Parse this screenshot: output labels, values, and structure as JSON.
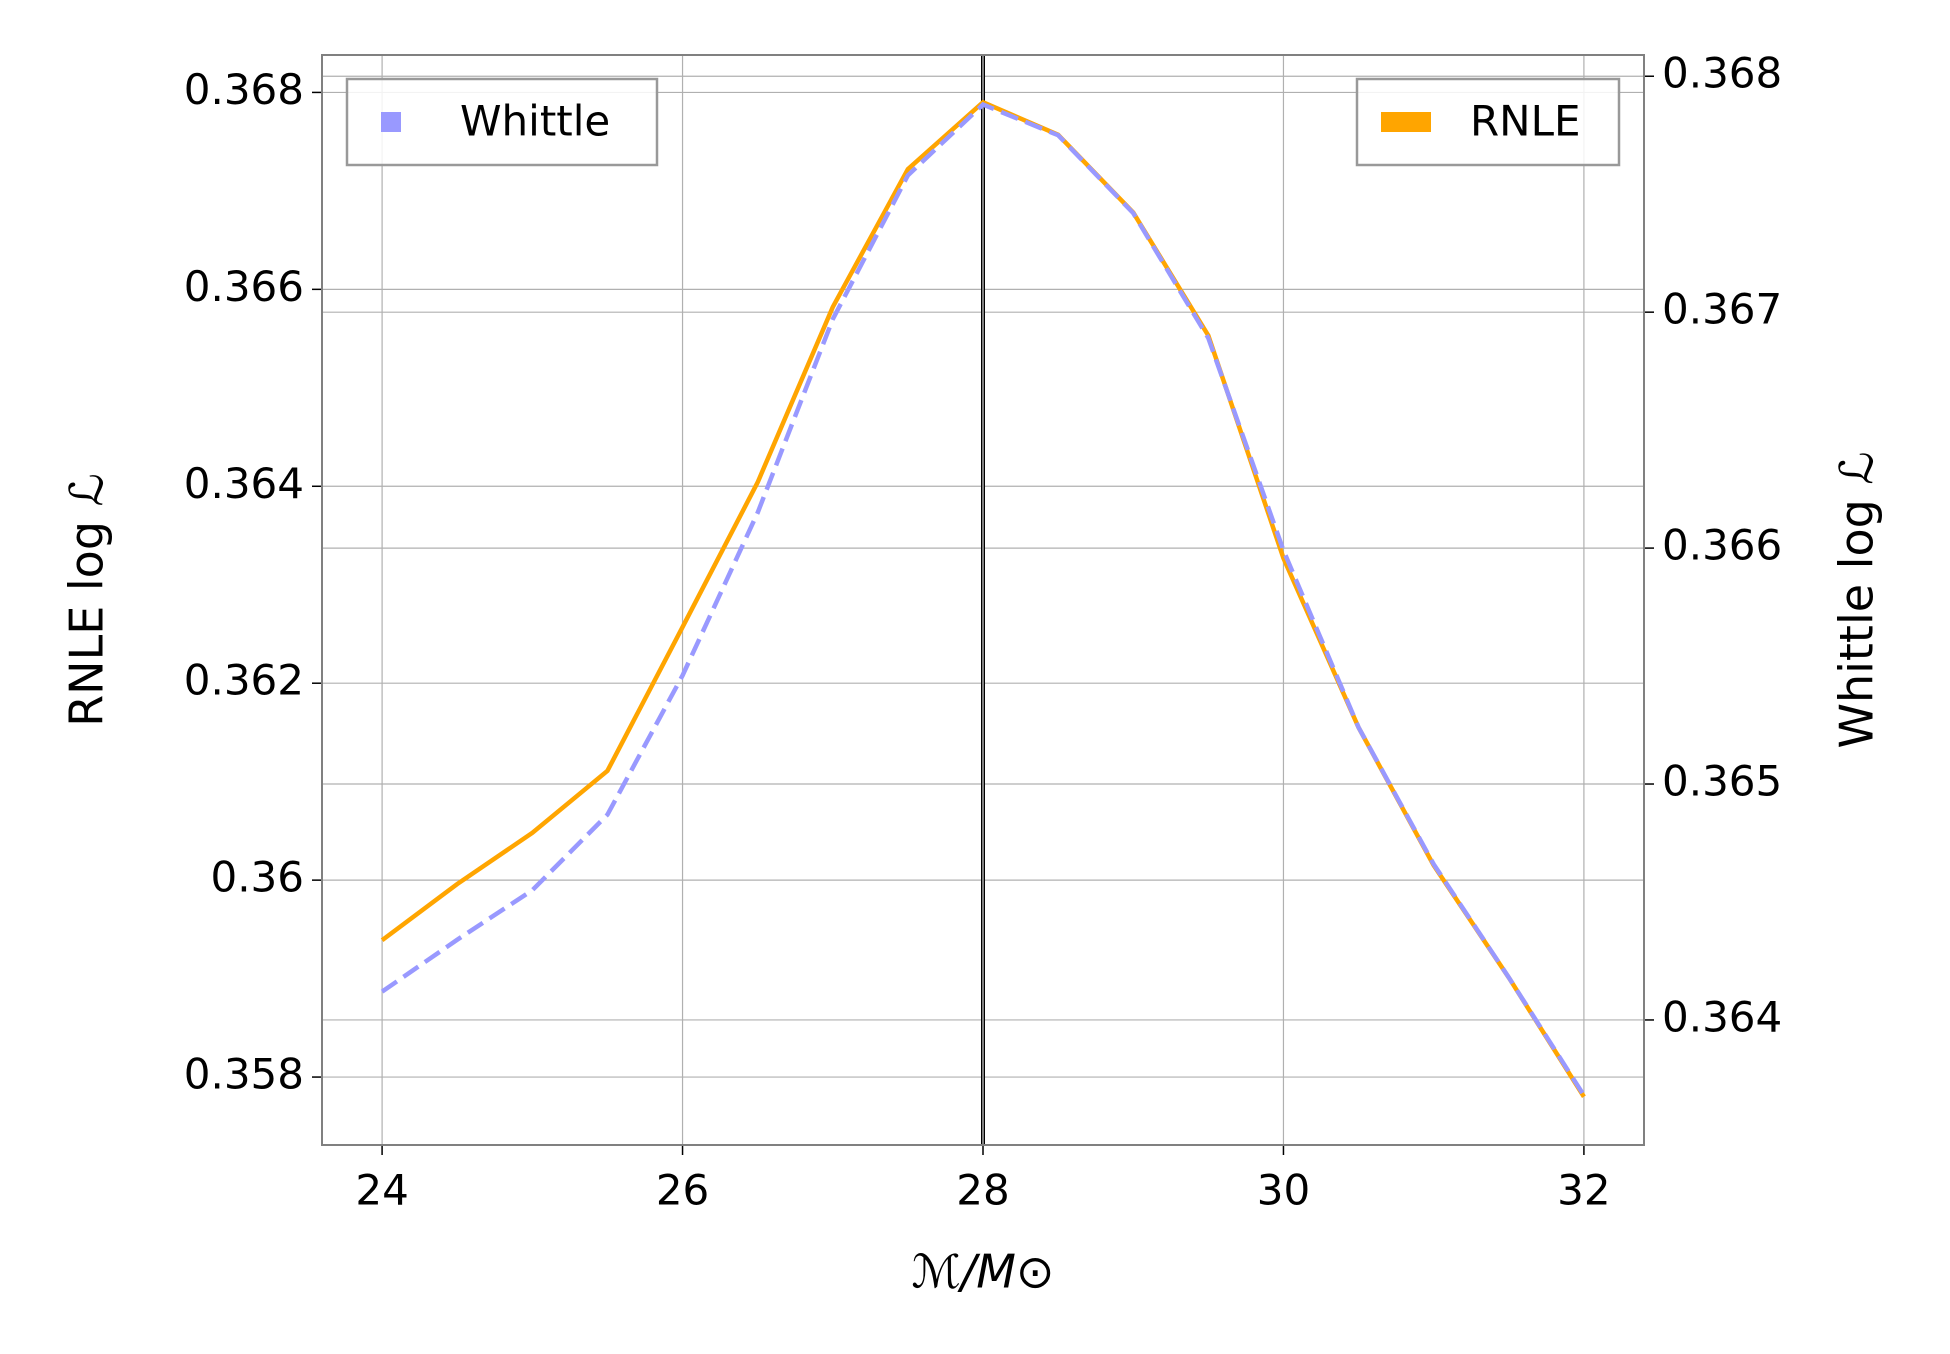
{
  "chart_data": {
    "type": "line",
    "xlabel": "ℳ/M⊙",
    "ylabel": "RNLE log ℒ",
    "y2label": "Whittle log ℒ",
    "x": [
      24,
      24.5,
      25,
      25.5,
      26,
      26.5,
      27,
      27.5,
      28,
      28.5,
      29,
      29.5,
      30,
      30.5,
      31,
      31.5,
      32
    ],
    "series": [
      {
        "name": "RNLE",
        "color": "#ffa500",
        "axis": "y",
        "legend": "upper right",
        "values": [
          0.35939,
          0.35996,
          0.36048,
          0.36111,
          0.36257,
          0.36404,
          0.36582,
          0.36722,
          0.3679,
          0.36757,
          0.36678,
          0.36553,
          0.36327,
          0.36155,
          0.36015,
          0.35901,
          0.3578
        ]
      },
      {
        "name": "Whittle",
        "color": "#9999ff",
        "axis": "y2",
        "dashed": true,
        "legend": "upper left",
        "values": [
          0.36412,
          0.36434,
          0.36455,
          0.36487,
          0.36546,
          0.36615,
          0.36697,
          0.36758,
          0.36788,
          0.36775,
          0.36742,
          0.36689,
          0.36599,
          0.36524,
          0.36466,
          0.36418,
          0.36368
        ]
      }
    ],
    "vline": 28,
    "xlim": [
      23.6,
      32.4
    ],
    "xticks": [
      24,
      26,
      28,
      30,
      32
    ],
    "ylim": [
      0.35731,
      0.36838
    ],
    "yticks": [
      0.358,
      0.36,
      0.362,
      0.364,
      0.366,
      0.368
    ],
    "y2lim": [
      0.36347,
      0.36809
    ],
    "y2ticks": [
      0.364,
      0.365,
      0.366,
      0.367,
      0.368
    ],
    "grid": true
  }
}
